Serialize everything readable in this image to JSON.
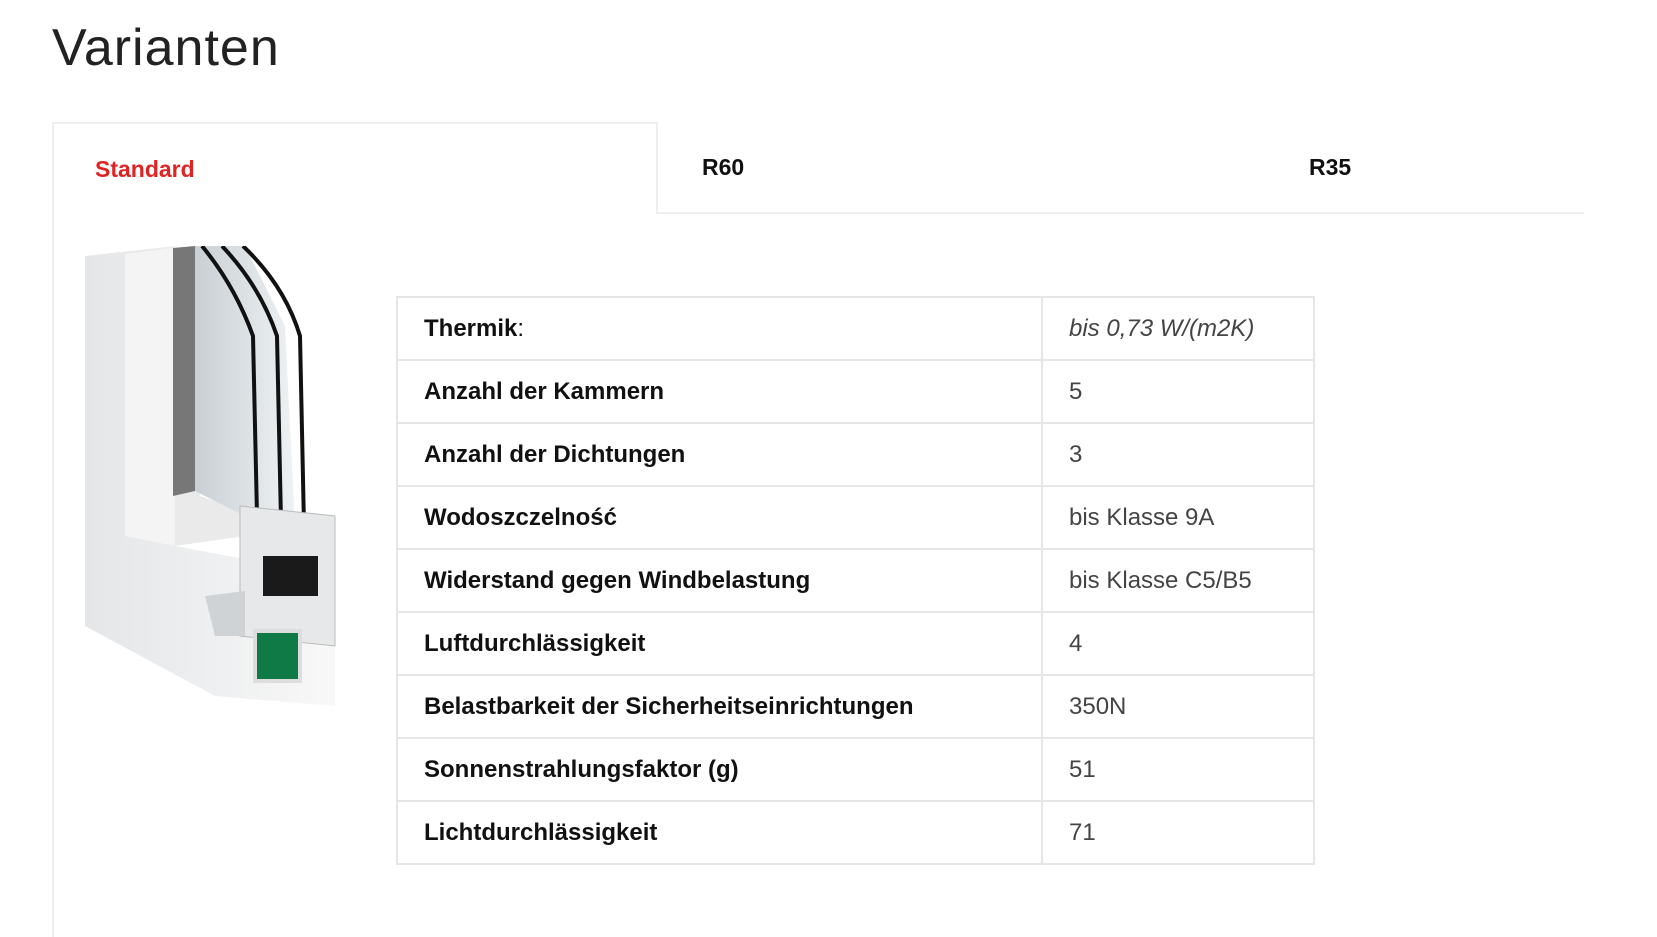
{
  "page_title": "Varianten",
  "tabs": [
    {
      "label": "Standard",
      "active": true
    },
    {
      "label": "R60",
      "active": false
    },
    {
      "label": "R35",
      "active": false
    }
  ],
  "accent_color": "#e02424",
  "product_image": {
    "icon": "window-profile-cross-section-image"
  },
  "specs": [
    {
      "key": "Thermik",
      "suffix": ":",
      "value": "bis 0,73 W/(m2K)"
    },
    {
      "key": "Anzahl der Kammern",
      "value": "5"
    },
    {
      "key": "Anzahl der Dichtungen",
      "value": "3"
    },
    {
      "key": "Wodoszczelność",
      "value": "bis Klasse 9A"
    },
    {
      "key": "Widerstand gegen Windbelastung",
      "value": "bis Klasse C5/B5"
    },
    {
      "key": "Luftdurchlässigkeit",
      "value": "4"
    },
    {
      "key": "Belastbarkeit der Sicherheitseinrichtungen",
      "value": "350N"
    },
    {
      "key": "Sonnenstrahlungsfaktor (g)",
      "value": "51"
    },
    {
      "key": "Lichtdurchlässigkeit",
      "value": "71"
    }
  ]
}
